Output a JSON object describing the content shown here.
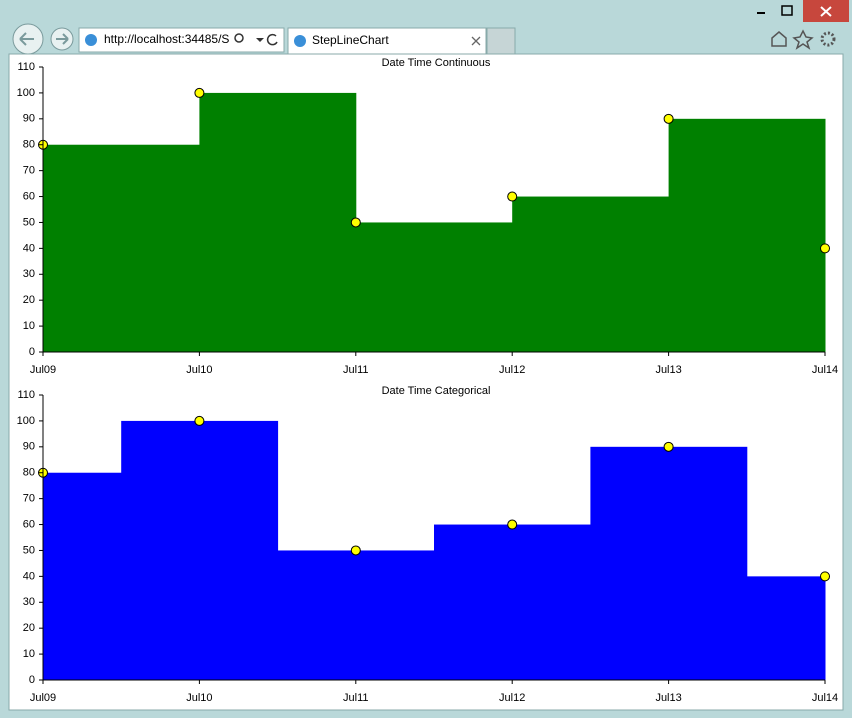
{
  "browser": {
    "url": "http://localhost:34485/S",
    "tab": "StepLineChart"
  },
  "chart_data": [
    {
      "type": "steparea",
      "step": "post",
      "title": "Date Time Continuous",
      "categories": [
        "Jul09",
        "Jul10",
        "Jul11",
        "Jul12",
        "Jul13",
        "Jul14"
      ],
      "values": [
        80,
        100,
        50,
        60,
        90,
        40
      ],
      "color": "#008000",
      "marker_color": "#ffff00",
      "ylim": [
        0,
        110
      ],
      "yticks": [
        0,
        10,
        20,
        30,
        40,
        50,
        60,
        70,
        80,
        90,
        100,
        110
      ]
    },
    {
      "type": "steparea",
      "step": "mid",
      "title": "Date Time Categorical",
      "categories": [
        "Jul09",
        "Jul10",
        "Jul11",
        "Jul12",
        "Jul13",
        "Jul14"
      ],
      "values": [
        80,
        100,
        50,
        60,
        90,
        40
      ],
      "color": "#0000ff",
      "marker_color": "#ffff00",
      "ylim": [
        0,
        110
      ],
      "yticks": [
        0,
        10,
        20,
        30,
        40,
        50,
        60,
        70,
        80,
        90,
        100,
        110
      ]
    }
  ]
}
